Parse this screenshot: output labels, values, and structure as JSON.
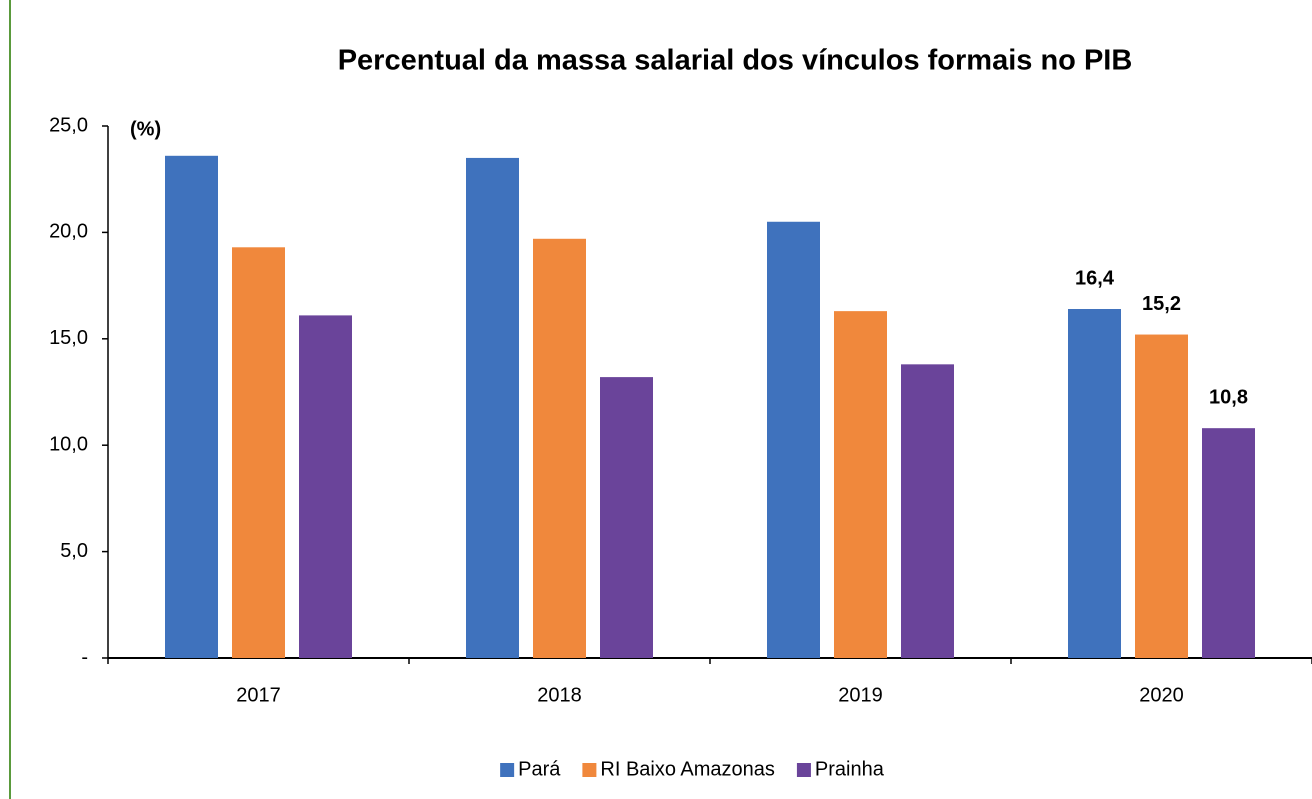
{
  "chart_data": {
    "type": "bar",
    "title": "Percentual da massa salarial dos vínculos formais no PIB",
    "annotation": "(%)",
    "categories": [
      "2017",
      "2018",
      "2019",
      "2020"
    ],
    "series": [
      {
        "name": "Pará",
        "color": "#3f72bd",
        "values": [
          23.6,
          23.5,
          20.5,
          16.4
        ],
        "value_labels": [
          null,
          null,
          null,
          "16,4"
        ]
      },
      {
        "name": "RI Baixo Amazonas",
        "color": "#f0883c",
        "values": [
          19.3,
          19.7,
          16.3,
          15.2
        ],
        "value_labels": [
          null,
          null,
          null,
          "15,2"
        ]
      },
      {
        "name": "Prainha",
        "color": "#6a449a",
        "values": [
          16.1,
          13.2,
          13.8,
          10.8
        ],
        "value_labels": [
          null,
          null,
          null,
          "10,8"
        ]
      }
    ],
    "ylim": [
      0,
      25
    ],
    "yticks": [
      {
        "value": 0,
        "label": "-"
      },
      {
        "value": 5,
        "label": "5,0"
      },
      {
        "value": 10,
        "label": "10,0"
      },
      {
        "value": 15,
        "label": "15,0"
      },
      {
        "value": 20,
        "label": "20,0"
      },
      {
        "value": 25,
        "label": "25,0"
      }
    ],
    "legend": "bottom"
  }
}
